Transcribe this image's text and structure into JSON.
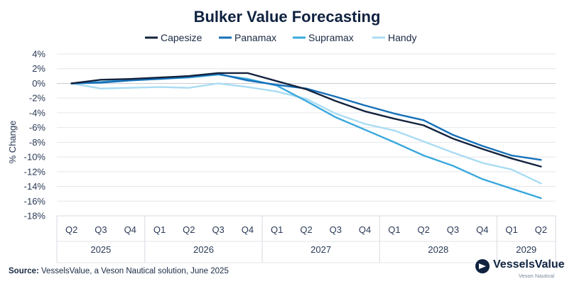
{
  "chart_data": {
    "type": "line",
    "title": "Bulker Value Forecasting",
    "ylabel": "% Change",
    "xlabel": "",
    "ylim": [
      -18,
      4
    ],
    "yticks": [
      4,
      2,
      0,
      -2,
      -4,
      -6,
      -8,
      -10,
      -12,
      -14,
      -16,
      -18
    ],
    "ytick_suffix": "%",
    "grid": "horizontal",
    "legend_position": "top",
    "categories": [
      "Q2",
      "Q3",
      "Q4",
      "Q1",
      "Q2",
      "Q3",
      "Q4",
      "Q1",
      "Q2",
      "Q3",
      "Q4",
      "Q1",
      "Q2",
      "Q3",
      "Q4",
      "Q1",
      "Q2"
    ],
    "years": [
      {
        "label": "2025",
        "start": 0,
        "end": 2
      },
      {
        "label": "2026",
        "start": 3,
        "end": 6
      },
      {
        "label": "2027",
        "start": 7,
        "end": 10
      },
      {
        "label": "2028",
        "start": 11,
        "end": 14
      },
      {
        "label": "2029",
        "start": 15,
        "end": 16
      }
    ],
    "series": [
      {
        "name": "Capesize",
        "color": "#14233d",
        "values": [
          0,
          0.5,
          0.6,
          0.8,
          1.0,
          1.4,
          1.4,
          0.3,
          -0.8,
          -2.4,
          -3.8,
          -4.8,
          -5.7,
          -7.5,
          -8.9,
          -10.2,
          -11.3
        ]
      },
      {
        "name": "Panamax",
        "color": "#1570b8",
        "values": [
          0,
          0.1,
          0.4,
          0.6,
          0.9,
          1.3,
          0.4,
          -0.2,
          -0.7,
          -1.8,
          -3.0,
          -4.1,
          -5.0,
          -7.0,
          -8.5,
          -9.8,
          -10.4
        ]
      },
      {
        "name": "Supramax",
        "color": "#3aa8dc",
        "values": [
          0,
          0.2,
          0.5,
          0.6,
          0.8,
          1.2,
          0.6,
          -0.3,
          -2.4,
          -4.6,
          -6.3,
          -8.0,
          -9.8,
          -11.2,
          -13.0,
          -14.3,
          -15.6
        ]
      },
      {
        "name": "Handy",
        "color": "#a9dcf3",
        "values": [
          0,
          -0.7,
          -0.6,
          -0.5,
          -0.6,
          0.0,
          -0.5,
          -1.1,
          -2.1,
          -4.1,
          -5.5,
          -6.4,
          -7.9,
          -9.4,
          -10.8,
          -11.7,
          -13.6
        ]
      }
    ]
  },
  "source": {
    "label": "Source:",
    "text": " VesselsValue, a Veson Nautical solution, June 2025"
  },
  "logo": {
    "name": "VesselsValue",
    "sub": "Veson Nautical",
    "icon": "vesselsvalue-logo-icon"
  }
}
